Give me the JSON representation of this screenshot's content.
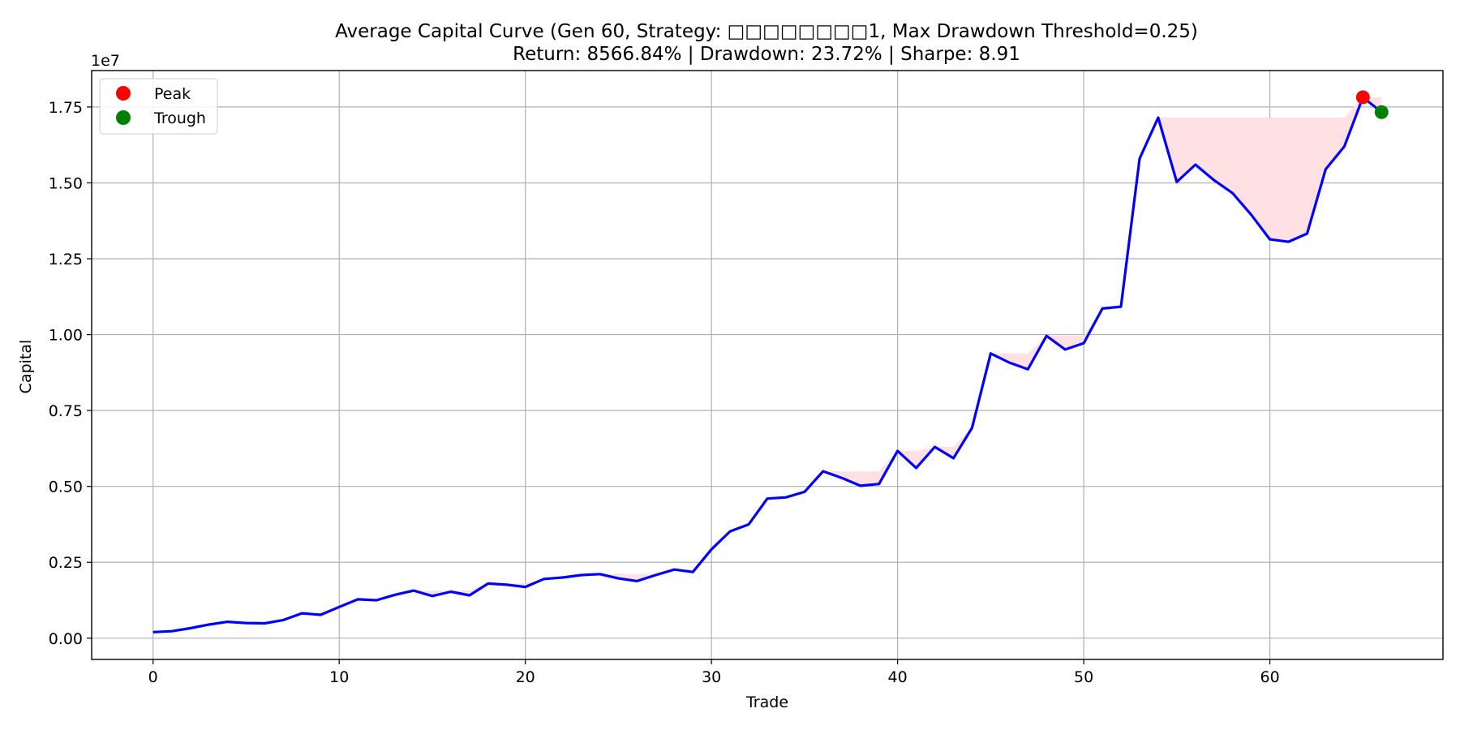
{
  "chart_data": {
    "type": "line",
    "title": "Average Capital Curve (Gen 60, Strategy: □□□□□□□□1, Max Drawdown Threshold=0.25)",
    "subtitle": "Return: 8566.84% | Drawdown: 23.72% | Sharpe: 8.91",
    "xlabel": "Trade",
    "ylabel": "Capital",
    "y_scale_label": "1e7",
    "xlim": [
      -3.3,
      69.3
    ],
    "ylim": [
      -0.07,
      1.87
    ],
    "x_ticks": [
      0,
      10,
      20,
      30,
      40,
      50,
      60
    ],
    "x_tick_labels": [
      "0",
      "10",
      "20",
      "30",
      "40",
      "50",
      "60"
    ],
    "y_ticks": [
      0,
      0.25,
      0.5,
      0.75,
      1.0,
      1.25,
      1.5,
      1.75
    ],
    "y_tick_labels": [
      "0.00",
      "0.25",
      "0.50",
      "0.75",
      "1.00",
      "1.25",
      "1.50",
      "1.75"
    ],
    "grid": true,
    "legend_position": "top-left",
    "colors": {
      "line": "#0000ff",
      "drawdown_fill": "#ffe0e3",
      "peak": "#ff0000",
      "trough": "#008000",
      "grid": "#b0b0b0"
    },
    "series": [
      {
        "name": "Capital",
        "x": [
          0,
          1,
          2,
          3,
          4,
          5,
          6,
          7,
          8,
          9,
          10,
          11,
          12,
          13,
          14,
          15,
          16,
          17,
          18,
          19,
          20,
          21,
          22,
          23,
          24,
          25,
          26,
          27,
          28,
          29,
          30,
          31,
          32,
          33,
          34,
          35,
          36,
          37,
          38,
          39,
          40,
          41,
          42,
          43,
          44,
          45,
          46,
          47,
          48,
          49,
          50,
          51,
          52,
          53,
          54,
          55,
          56,
          57,
          58,
          59,
          60,
          61,
          62,
          63,
          64,
          65,
          66
        ],
        "y": [
          0.02,
          0.023,
          0.033,
          0.045,
          0.054,
          0.05,
          0.049,
          0.06,
          0.082,
          0.077,
          0.103,
          0.128,
          0.125,
          0.143,
          0.157,
          0.139,
          0.153,
          0.141,
          0.18,
          0.176,
          0.169,
          0.195,
          0.2,
          0.208,
          0.211,
          0.197,
          0.188,
          0.208,
          0.226,
          0.218,
          0.293,
          0.352,
          0.375,
          0.46,
          0.464,
          0.482,
          0.55,
          0.528,
          0.502,
          0.508,
          0.617,
          0.561,
          0.63,
          0.593,
          0.693,
          0.938,
          0.908,
          0.886,
          0.996,
          0.951,
          0.972,
          1.086,
          1.092,
          1.58,
          1.715,
          1.503,
          1.56,
          1.509,
          1.466,
          1.395,
          1.314,
          1.306,
          1.333,
          1.545,
          1.62,
          1.782,
          1.733
        ]
      }
    ],
    "markers": [
      {
        "name": "Peak",
        "x": 65,
        "y": 1.782
      },
      {
        "name": "Trough",
        "x": 66,
        "y": 1.733
      }
    ]
  }
}
